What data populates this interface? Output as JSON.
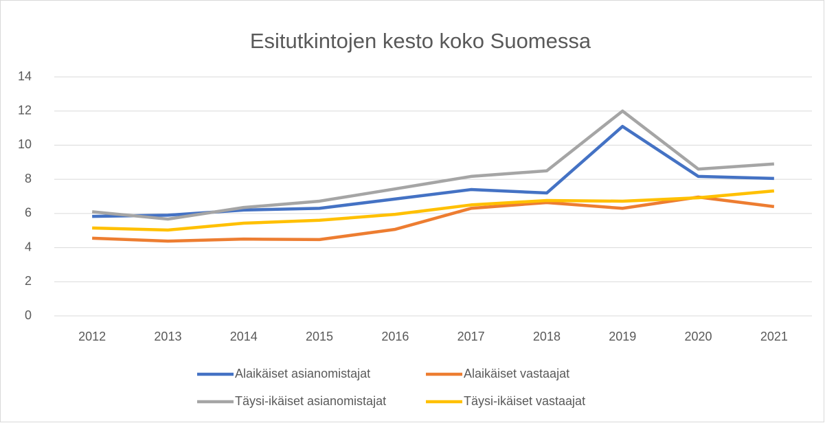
{
  "chart_data": {
    "type": "line",
    "title": "Esitutkintojen kesto koko Suomessa",
    "categories": [
      "2012",
      "2013",
      "2014",
      "2015",
      "2016",
      "2017",
      "2018",
      "2019",
      "2020",
      "2021"
    ],
    "series": [
      {
        "name": "Alaikäiset asianomistajat",
        "color": "#4472c4",
        "values": [
          5.83,
          5.9,
          6.2,
          6.3,
          6.85,
          7.4,
          7.2,
          11.1,
          8.17,
          8.05
        ]
      },
      {
        "name": "Alaikäiset vastaajat",
        "color": "#ed7d31",
        "values": [
          4.55,
          4.38,
          4.5,
          4.47,
          5.07,
          6.3,
          6.64,
          6.3,
          6.96,
          6.4
        ]
      },
      {
        "name": "Täysi-ikäiset asianomistajat",
        "color": "#a5a5a5",
        "values": [
          6.1,
          5.67,
          6.35,
          6.72,
          7.44,
          8.17,
          8.5,
          12.0,
          8.6,
          8.9
        ]
      },
      {
        "name": "Täysi-ikäiset vastaajat",
        "color": "#ffc000",
        "values": [
          5.15,
          5.03,
          5.43,
          5.6,
          5.95,
          6.5,
          6.76,
          6.72,
          6.92,
          7.32
        ]
      }
    ],
    "ylim": [
      0,
      14
    ],
    "yticks": [
      0,
      2,
      4,
      6,
      8,
      10,
      12,
      14
    ],
    "grid": true,
    "legend": "bottom"
  }
}
